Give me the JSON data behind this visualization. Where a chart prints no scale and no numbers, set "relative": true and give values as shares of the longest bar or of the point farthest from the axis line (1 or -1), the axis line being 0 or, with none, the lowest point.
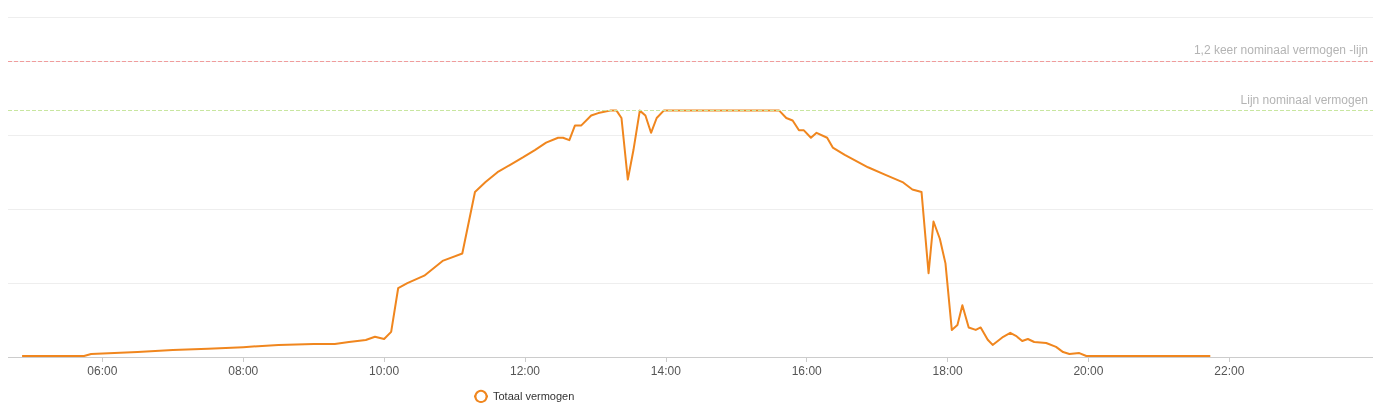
{
  "chart_data": {
    "type": "line",
    "relative": true,
    "legend": "bottom",
    "grid": "y",
    "marker": "none",
    "line_style": "solid",
    "xlim": [
      4.66,
      24.04
    ],
    "xticks": [
      {
        "value": 6,
        "label": "06:00"
      },
      {
        "value": 8,
        "label": "08:00"
      },
      {
        "value": 10,
        "label": "10:00"
      },
      {
        "value": 12,
        "label": "12:00"
      },
      {
        "value": 14,
        "label": "14:00"
      },
      {
        "value": 16,
        "label": "16:00"
      },
      {
        "value": 18,
        "label": "18:00"
      },
      {
        "value": 20,
        "label": "20:00"
      },
      {
        "value": 22,
        "label": "22:00"
      }
    ],
    "ref_lines": [
      {
        "axis": "y",
        "value": 1.2,
        "label": "1,2 keer nominaal vermogen -lijn",
        "color": "#f09c9c",
        "line_style": "dashed"
      },
      {
        "axis": "y",
        "value": 1.0,
        "label": "Lijn nominaal vermogen",
        "color": "#c8e6a0",
        "line_style": "dashed"
      }
    ],
    "series": [
      {
        "name": "Totaal vermogen",
        "color": "#f0861e",
        "x": [
          4.86,
          5.74,
          5.84,
          6.5,
          7.0,
          7.5,
          8.0,
          8.5,
          9.0,
          9.3,
          9.5,
          9.74,
          9.87,
          10.0,
          10.1,
          10.2,
          10.33,
          10.57,
          10.83,
          11.11,
          11.29,
          11.44,
          11.61,
          11.79,
          11.97,
          12.14,
          12.3,
          12.47,
          12.54,
          12.63,
          12.71,
          12.8,
          12.94,
          13.04,
          13.21,
          13.3,
          13.37,
          13.46,
          13.54,
          13.63,
          13.71,
          13.79,
          13.87,
          13.97,
          14.54,
          15.11,
          15.61,
          15.71,
          15.8,
          15.89,
          15.96,
          16.06,
          16.14,
          16.29,
          16.37,
          16.54,
          16.87,
          17.11,
          17.36,
          17.5,
          17.63,
          17.73,
          17.8,
          17.89,
          17.97,
          18.06,
          18.14,
          18.21,
          18.3,
          18.4,
          18.47,
          18.57,
          18.64,
          18.79,
          18.89,
          18.97,
          19.06,
          19.14,
          19.23,
          19.4,
          19.54,
          19.64,
          19.73,
          19.87,
          19.97,
          21.73
        ],
        "values": [
          0.004,
          0.004,
          0.012,
          0.02,
          0.028,
          0.033,
          0.04,
          0.049,
          0.053,
          0.053,
          0.061,
          0.069,
          0.082,
          0.073,
          0.102,
          0.28,
          0.3,
          0.33,
          0.39,
          0.42,
          0.67,
          0.71,
          0.75,
          0.78,
          0.81,
          0.84,
          0.87,
          0.89,
          0.89,
          0.88,
          0.94,
          0.94,
          0.98,
          0.99,
          1.0,
          1.0,
          0.97,
          0.72,
          0.84,
          1.0,
          0.98,
          0.91,
          0.97,
          1.0,
          1.0,
          1.0,
          1.0,
          0.97,
          0.96,
          0.92,
          0.92,
          0.89,
          0.91,
          0.89,
          0.85,
          0.82,
          0.77,
          0.74,
          0.71,
          0.68,
          0.67,
          0.34,
          0.55,
          0.48,
          0.38,
          0.11,
          0.13,
          0.21,
          0.12,
          0.11,
          0.12,
          0.07,
          0.049,
          0.082,
          0.098,
          0.086,
          0.065,
          0.073,
          0.061,
          0.057,
          0.041,
          0.02,
          0.012,
          0.016,
          0.004,
          0.004
        ]
      }
    ]
  }
}
